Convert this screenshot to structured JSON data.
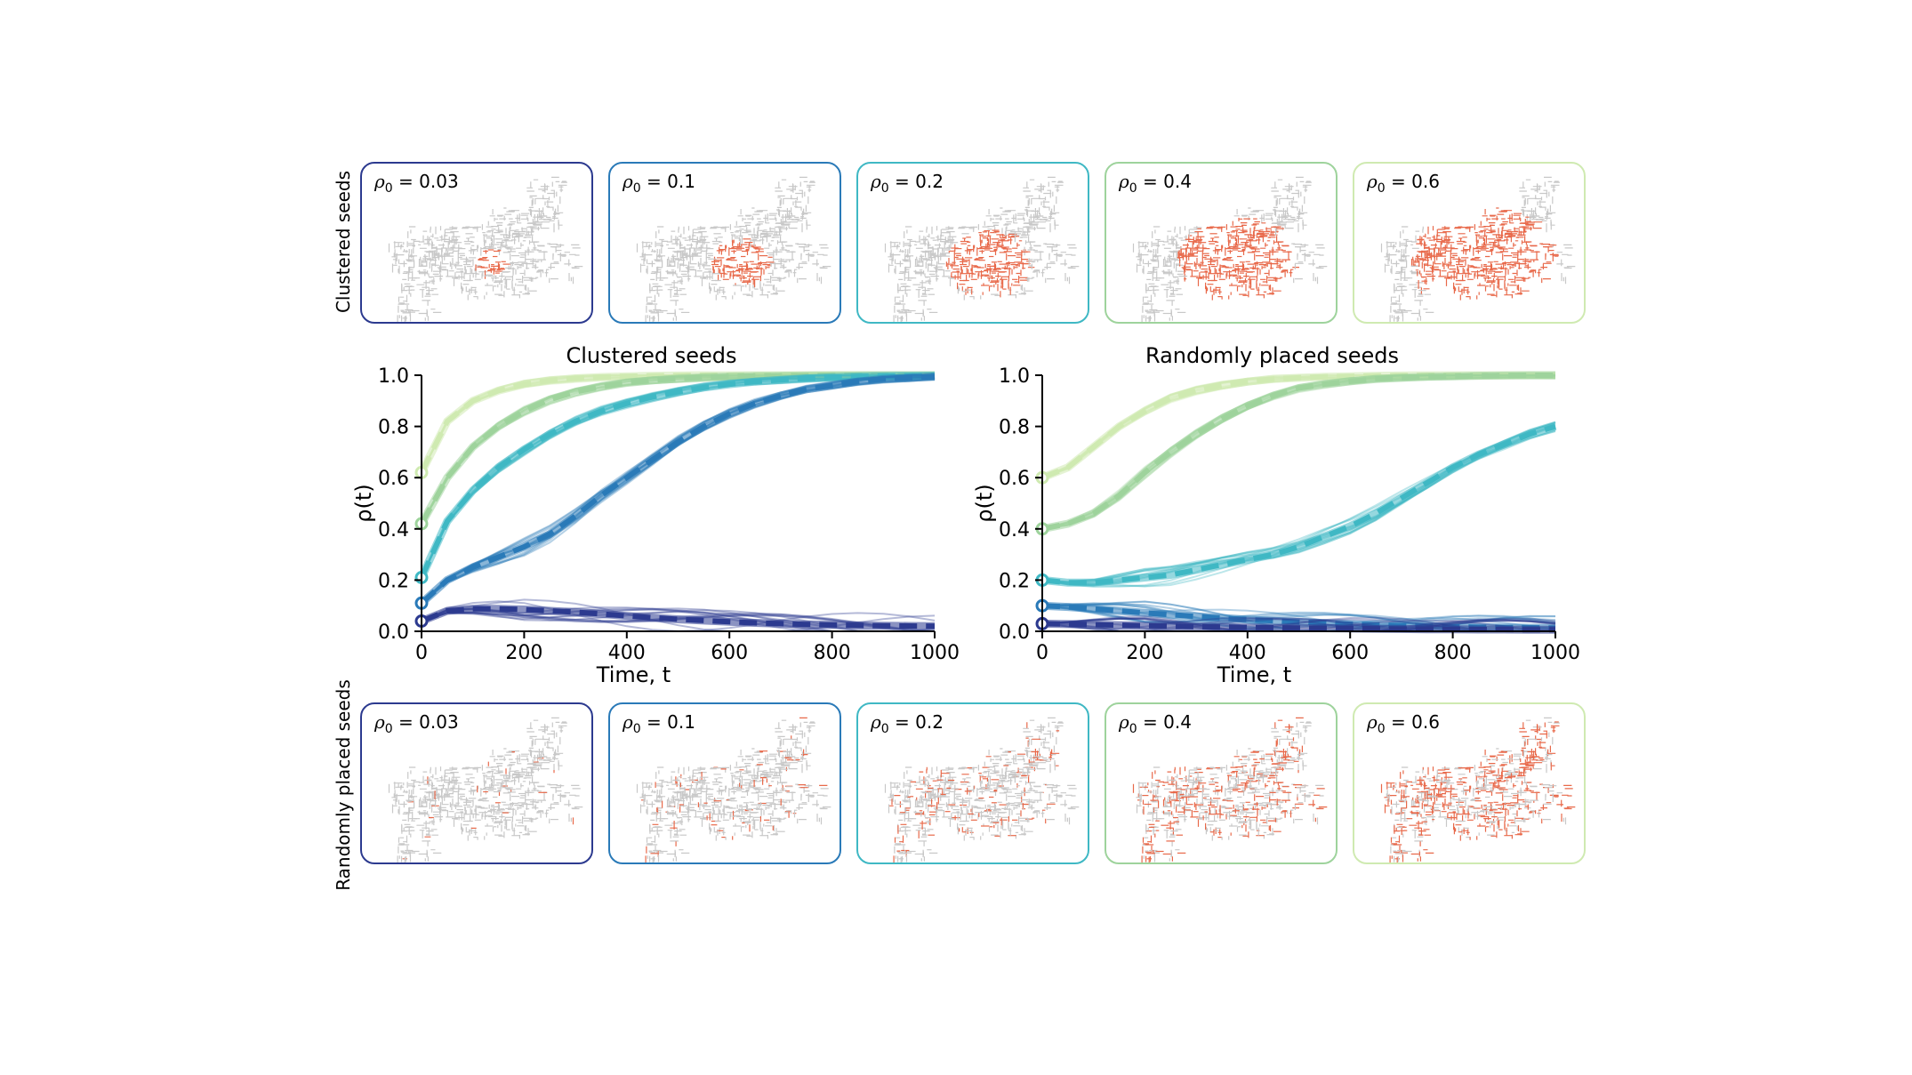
{
  "figure": {
    "row_labels": {
      "top": "Clustered seeds",
      "bottom": "Randomly placed seeds"
    },
    "panel_symbol": "ρ",
    "panel_subscript": "0",
    "panel_eq": " = ",
    "panels_top": [
      {
        "value": "0.03",
        "border": "#2c3a8f"
      },
      {
        "value": "0.1",
        "border": "#2a7ab8"
      },
      {
        "value": "0.2",
        "border": "#3fb8c4"
      },
      {
        "value": "0.4",
        "border": "#9ed39c"
      },
      {
        "value": "0.6",
        "border": "#cfeab1"
      }
    ],
    "panels_bottom": [
      {
        "value": "0.03",
        "border": "#2c3a8f"
      },
      {
        "value": "0.1",
        "border": "#2a7ab8"
      },
      {
        "value": "0.2",
        "border": "#3fb8c4"
      },
      {
        "value": "0.4",
        "border": "#9ed39c"
      },
      {
        "value": "0.6",
        "border": "#cfeab1"
      }
    ],
    "node_colors": {
      "inactive": "#c8c8c8",
      "active": "#e8694a"
    }
  },
  "chart_data": [
    {
      "type": "line",
      "title": "Clustered seeds",
      "xlabel": "Time, t",
      "ylabel": "ρ(t)",
      "xlim": [
        0,
        1000
      ],
      "ylim": [
        0,
        1.0
      ],
      "xticks": [
        "0",
        "200",
        "400",
        "600",
        "800",
        "1000"
      ],
      "yticks": [
        "0.0",
        "0.2",
        "0.4",
        "0.6",
        "0.8",
        "1.0"
      ],
      "x": [
        0,
        50,
        100,
        150,
        200,
        250,
        300,
        350,
        400,
        450,
        500,
        550,
        600,
        650,
        700,
        750,
        800,
        850,
        900,
        950,
        1000
      ],
      "series": [
        {
          "rho0": 0.6,
          "color": "#cfeab1",
          "mean": [
            0.62,
            0.82,
            0.9,
            0.94,
            0.965,
            0.98,
            0.988,
            0.993,
            0.996,
            0.998,
            0.999,
            1,
            1,
            1,
            1,
            1,
            1,
            1,
            1,
            1,
            1
          ],
          "model": [
            0.62,
            0.82,
            0.9,
            0.94,
            0.965,
            0.98,
            0.988,
            0.993,
            0.996,
            0.998,
            0.999,
            1,
            1,
            1,
            1,
            1,
            1,
            1,
            1,
            1,
            1
          ]
        },
        {
          "rho0": 0.4,
          "color": "#9ed39c",
          "mean": [
            0.42,
            0.6,
            0.72,
            0.8,
            0.86,
            0.905,
            0.935,
            0.955,
            0.97,
            0.98,
            0.987,
            0.992,
            0.995,
            0.997,
            0.998,
            0.999,
            1,
            1,
            1,
            1,
            1
          ],
          "model": [
            0.42,
            0.6,
            0.72,
            0.8,
            0.86,
            0.905,
            0.935,
            0.955,
            0.97,
            0.98,
            0.987,
            0.992,
            0.995,
            0.997,
            0.998,
            0.999,
            1,
            1,
            1,
            1,
            1
          ]
        },
        {
          "rho0": 0.2,
          "color": "#3fb8c4",
          "mean": [
            0.21,
            0.43,
            0.55,
            0.64,
            0.71,
            0.77,
            0.82,
            0.86,
            0.89,
            0.915,
            0.935,
            0.952,
            0.965,
            0.975,
            0.982,
            0.988,
            0.992,
            0.995,
            0.997,
            0.998,
            0.999
          ],
          "model": [
            0.21,
            0.43,
            0.55,
            0.64,
            0.71,
            0.77,
            0.82,
            0.86,
            0.89,
            0.915,
            0.935,
            0.952,
            0.965,
            0.975,
            0.982,
            0.988,
            0.992,
            0.995,
            0.997,
            0.998,
            0.999
          ]
        },
        {
          "rho0": 0.1,
          "color": "#2a7ab8",
          "mean": [
            0.11,
            0.2,
            0.25,
            0.29,
            0.33,
            0.38,
            0.45,
            0.53,
            0.6,
            0.67,
            0.74,
            0.8,
            0.85,
            0.89,
            0.92,
            0.945,
            0.96,
            0.975,
            0.985,
            0.99,
            0.995
          ],
          "model": [
            0.11,
            0.2,
            0.25,
            0.29,
            0.33,
            0.38,
            0.45,
            0.53,
            0.6,
            0.67,
            0.74,
            0.8,
            0.85,
            0.89,
            0.92,
            0.945,
            0.96,
            0.975,
            0.985,
            0.99,
            0.995
          ]
        },
        {
          "rho0": 0.03,
          "color": "#2c3a8f",
          "mean": [
            0.04,
            0.08,
            0.088,
            0.088,
            0.085,
            0.08,
            0.075,
            0.068,
            0.06,
            0.053,
            0.047,
            0.042,
            0.037,
            0.033,
            0.03,
            0.027,
            0.025,
            0.023,
            0.022,
            0.021,
            0.02
          ],
          "model": [
            0.04,
            0.08,
            0.088,
            0.088,
            0.085,
            0.08,
            0.075,
            0.068,
            0.06,
            0.053,
            0.047,
            0.042,
            0.037,
            0.033,
            0.03,
            0.027,
            0.025,
            0.023,
            0.022,
            0.021,
            0.02
          ]
        }
      ]
    },
    {
      "type": "line",
      "title": "Randomly placed seeds",
      "xlabel": "Time, t",
      "ylabel": "ρ(t)",
      "xlim": [
        0,
        1000
      ],
      "ylim": [
        0,
        1.0
      ],
      "xticks": [
        "0",
        "200",
        "400",
        "600",
        "800",
        "1000"
      ],
      "yticks": [
        "0.0",
        "0.2",
        "0.4",
        "0.6",
        "0.8",
        "1.0"
      ],
      "x": [
        0,
        50,
        100,
        150,
        200,
        250,
        300,
        350,
        400,
        450,
        500,
        550,
        600,
        650,
        700,
        750,
        800,
        850,
        900,
        950,
        1000
      ],
      "series": [
        {
          "rho0": 0.6,
          "color": "#cfeab1",
          "mean": [
            0.6,
            0.64,
            0.72,
            0.8,
            0.86,
            0.91,
            0.94,
            0.96,
            0.975,
            0.985,
            0.99,
            0.994,
            0.996,
            0.998,
            0.999,
            1,
            1,
            1,
            1,
            1,
            1
          ],
          "model": [
            0.6,
            0.64,
            0.72,
            0.8,
            0.86,
            0.91,
            0.94,
            0.96,
            0.975,
            0.985,
            0.99,
            0.994,
            0.996,
            0.998,
            0.999,
            1,
            1,
            1,
            1,
            1,
            1
          ]
        },
        {
          "rho0": 0.4,
          "color": "#9ed39c",
          "mean": [
            0.4,
            0.42,
            0.46,
            0.53,
            0.62,
            0.7,
            0.77,
            0.83,
            0.88,
            0.92,
            0.95,
            0.965,
            0.976,
            0.985,
            0.99,
            0.994,
            0.996,
            0.998,
            0.999,
            1,
            1
          ],
          "model": [
            0.4,
            0.42,
            0.46,
            0.53,
            0.62,
            0.7,
            0.77,
            0.83,
            0.88,
            0.92,
            0.95,
            0.965,
            0.976,
            0.985,
            0.99,
            0.994,
            0.996,
            0.998,
            0.999,
            1,
            1
          ]
        },
        {
          "rho0": 0.2,
          "color": "#3fb8c4",
          "mean": [
            0.2,
            0.19,
            0.19,
            0.2,
            0.21,
            0.22,
            0.24,
            0.26,
            0.28,
            0.3,
            0.33,
            0.37,
            0.41,
            0.46,
            0.52,
            0.58,
            0.64,
            0.69,
            0.73,
            0.77,
            0.8
          ],
          "model": [
            0.2,
            0.19,
            0.19,
            0.2,
            0.21,
            0.22,
            0.24,
            0.26,
            0.28,
            0.3,
            0.33,
            0.37,
            0.41,
            0.46,
            0.52,
            0.58,
            0.64,
            0.69,
            0.73,
            0.77,
            0.8
          ]
        },
        {
          "rho0": 0.1,
          "color": "#2a7ab8",
          "mean": [
            0.1,
            0.095,
            0.088,
            0.08,
            0.072,
            0.065,
            0.058,
            0.052,
            0.046,
            0.041,
            0.036,
            0.032,
            0.028,
            0.025,
            0.022,
            0.02,
            0.018,
            0.016,
            0.015,
            0.014,
            0.013
          ],
          "model": [
            0.1,
            0.095,
            0.088,
            0.08,
            0.072,
            0.065,
            0.058,
            0.052,
            0.046,
            0.041,
            0.036,
            0.032,
            0.028,
            0.025,
            0.022,
            0.02,
            0.018,
            0.016,
            0.015,
            0.014,
            0.013
          ]
        },
        {
          "rho0": 0.03,
          "color": "#2c3a8f",
          "mean": [
            0.03,
            0.028,
            0.026,
            0.024,
            0.022,
            0.02,
            0.018,
            0.017,
            0.015,
            0.014,
            0.013,
            0.012,
            0.011,
            0.01,
            0.009,
            0.008,
            0.008,
            0.007,
            0.007,
            0.006,
            0.006
          ],
          "model": [
            0.03,
            0.028,
            0.026,
            0.024,
            0.022,
            0.02,
            0.018,
            0.017,
            0.015,
            0.014,
            0.013,
            0.012,
            0.011,
            0.01,
            0.009,
            0.008,
            0.008,
            0.007,
            0.007,
            0.006,
            0.006
          ]
        }
      ]
    }
  ]
}
